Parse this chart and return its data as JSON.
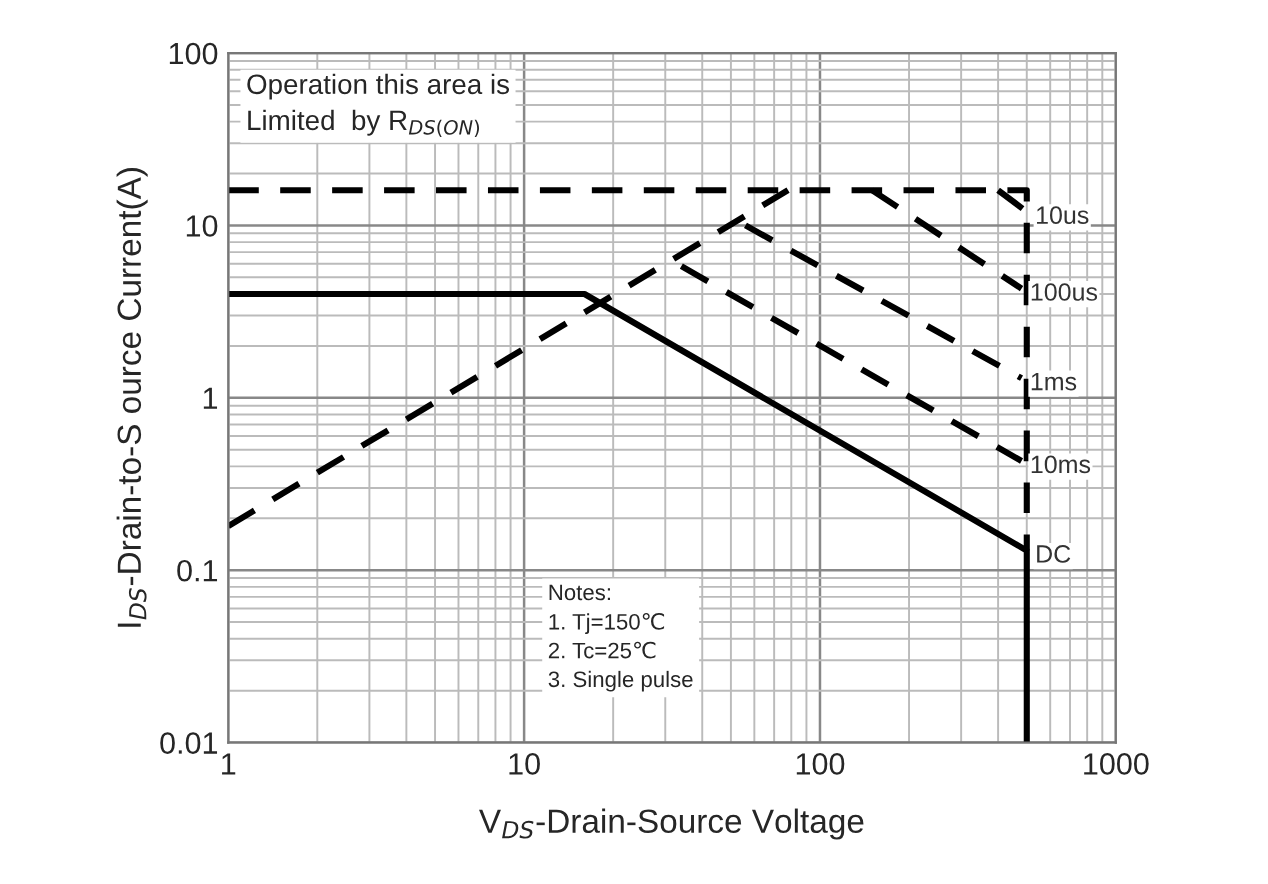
{
  "chart_data": {
    "type": "line",
    "xlabel": "V$_{DS}$-Drain-Source Voltage",
    "ylabel": "I$_{DS}$-Drain-to-S ource Current(A)",
    "log": "xy",
    "grid": true,
    "xlim": [
      1,
      1000
    ],
    "xticks": [
      1,
      10,
      100,
      1000
    ],
    "ylim": [
      0.01,
      100
    ],
    "yticks": [
      0.01,
      0.1,
      1,
      10,
      100
    ],
    "series": [
      {
        "color": "#000000",
        "line_style": "dashed",
        "x": [
          1,
          500,
          500
        ],
        "values": [
          16,
          16,
          0.13
        ]
      },
      {
        "color": "#000000",
        "line_style": "dashed",
        "x": [
          1,
          78
        ],
        "values": [
          0.18,
          16
        ]
      },
      {
        "name": "10us",
        "color": "#000000",
        "line_style": "dashed",
        "x": [
          400,
          500
        ],
        "values": [
          16,
          12
        ]
      },
      {
        "name": "100us",
        "color": "#000000",
        "line_style": "dashed",
        "x": [
          150,
          480
        ],
        "values": [
          16,
          4.3
        ]
      },
      {
        "name": "1ms",
        "color": "#000000",
        "line_style": "dashed",
        "x": [
          56,
          480
        ],
        "values": [
          10,
          1.3
        ]
      },
      {
        "name": "10ms",
        "color": "#000000",
        "line_style": "dashed",
        "x": [
          34,
          480
        ],
        "values": [
          5.8,
          0.43
        ]
      },
      {
        "name": "DC",
        "color": "#000000",
        "line_style": "solid",
        "x": [
          1,
          16,
          500,
          500
        ],
        "values": [
          4,
          4,
          0.13,
          0.01
        ]
      }
    ],
    "annotations": [
      "Operation this area is\nLimited  by R$_{DS(ON)}$",
      "Notes:\n1. Tj=150℃\n2. Tc=25℃\n3. Single pulse"
    ]
  }
}
